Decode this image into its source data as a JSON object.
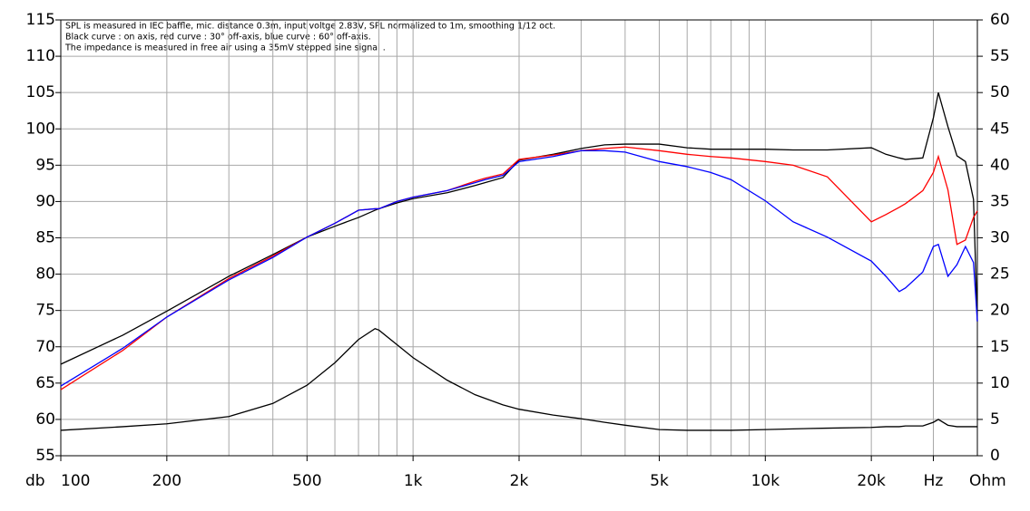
{
  "chart_data": {
    "type": "line",
    "annotations": [
      "SPL is measured in IEC baffle, mic. distance 0.3m, input voltge 2.83V, SPL normalized to 1m, smoothing 1/12 oct.",
      "Black curve : on axis, red curve : 30° off-axis, blue curve : 60° off-axis.",
      "The impedance is measured in free air using a 35mV stepped sine signal ."
    ],
    "y_label": "db",
    "y2_label": "Ohm",
    "xscale": "log",
    "grid": true,
    "x": [
      100,
      150,
      200,
      300,
      400,
      500,
      600,
      700,
      780,
      800,
      900,
      1000,
      1250,
      1500,
      1600,
      1800,
      2000,
      2500,
      3000,
      3500,
      4000,
      5000,
      6000,
      7000,
      8000,
      10000,
      12000,
      15000,
      20000,
      22000,
      24000,
      25000,
      28000,
      30000,
      31000,
      33000,
      35000,
      37000,
      39000,
      40000
    ],
    "series": [
      {
        "color": "#000000",
        "values": [
          67.6,
          71.6,
          74.9,
          79.7,
          82.7,
          85.1,
          86.6,
          87.8,
          88.8,
          89,
          89.8,
          90.4,
          91.2,
          92.2,
          92.6,
          93.3,
          95.7,
          96.5,
          97.3,
          97.8,
          97.9,
          97.9,
          97.4,
          97.2,
          97.2,
          97.2,
          97.1,
          97.1,
          97.4,
          96.5,
          96,
          95.8,
          96,
          101.5,
          105,
          100.3,
          96.3,
          95.5,
          90.3,
          73.5
        ]
      },
      {
        "color": "#ff0000",
        "values": [
          64.1,
          69.5,
          74.1,
          79.4,
          82.5,
          85.1,
          87,
          88.8,
          89,
          89,
          90,
          90.6,
          91.5,
          92.8,
          93.2,
          93.8,
          95.8,
          96.4,
          97,
          97.3,
          97.5,
          97,
          96.5,
          96.2,
          96,
          95.5,
          95,
          93.4,
          87.2,
          88.2,
          89.2,
          89.7,
          91.5,
          94,
          96.2,
          91.6,
          84.1,
          84.7,
          87.8,
          88.7
        ]
      },
      {
        "color": "#0000ff",
        "values": [
          64.6,
          69.8,
          74.1,
          79.2,
          82.3,
          85.1,
          87,
          88.8,
          89,
          89,
          90,
          90.6,
          91.5,
          92.6,
          93,
          93.6,
          95.5,
          96.2,
          97,
          97,
          96.8,
          95.5,
          94.8,
          94,
          93,
          90.1,
          87.2,
          85.1,
          81.8,
          79.7,
          77.6,
          78.1,
          80.3,
          83.8,
          84.1,
          79.7,
          81.3,
          83.8,
          81.6,
          73.5
        ]
      },
      {
        "color": "#000000",
        "axis": "y2",
        "values": [
          3.5,
          4,
          4.4,
          5.4,
          7.2,
          9.7,
          12.8,
          16,
          17.5,
          17.3,
          15.3,
          13.5,
          10.4,
          8.4,
          7.9,
          7,
          6.4,
          5.6,
          5.1,
          4.6,
          4.2,
          3.6,
          3.5,
          3.5,
          3.5,
          3.6,
          3.7,
          3.8,
          3.9,
          4,
          4,
          4.1,
          4.1,
          4.6,
          5,
          4.2,
          4,
          4,
          4,
          4
        ]
      }
    ],
    "xlim": [
      100,
      40000
    ],
    "xticks": [
      100,
      200,
      500,
      {
        "value": 1000,
        "label": "1k"
      },
      {
        "value": 2000,
        "label": "2k"
      },
      {
        "value": 5000,
        "label": "5k"
      },
      {
        "value": 10000,
        "label": "10k"
      },
      {
        "value": 20000,
        "label": "20k"
      },
      {
        "value": 30000,
        "label": "Hz"
      }
    ],
    "xminor": [
      300,
      400,
      600,
      700,
      800,
      900,
      3000,
      4000,
      6000,
      7000,
      8000,
      9000
    ],
    "ylim": [
      55,
      115
    ],
    "yticks": [
      55,
      60,
      65,
      70,
      75,
      80,
      85,
      90,
      95,
      100,
      105,
      110,
      115
    ],
    "y2lim": [
      0,
      60
    ],
    "y2ticks": [
      0,
      5,
      10,
      15,
      20,
      25,
      30,
      35,
      40,
      45,
      50,
      55,
      60
    ]
  }
}
